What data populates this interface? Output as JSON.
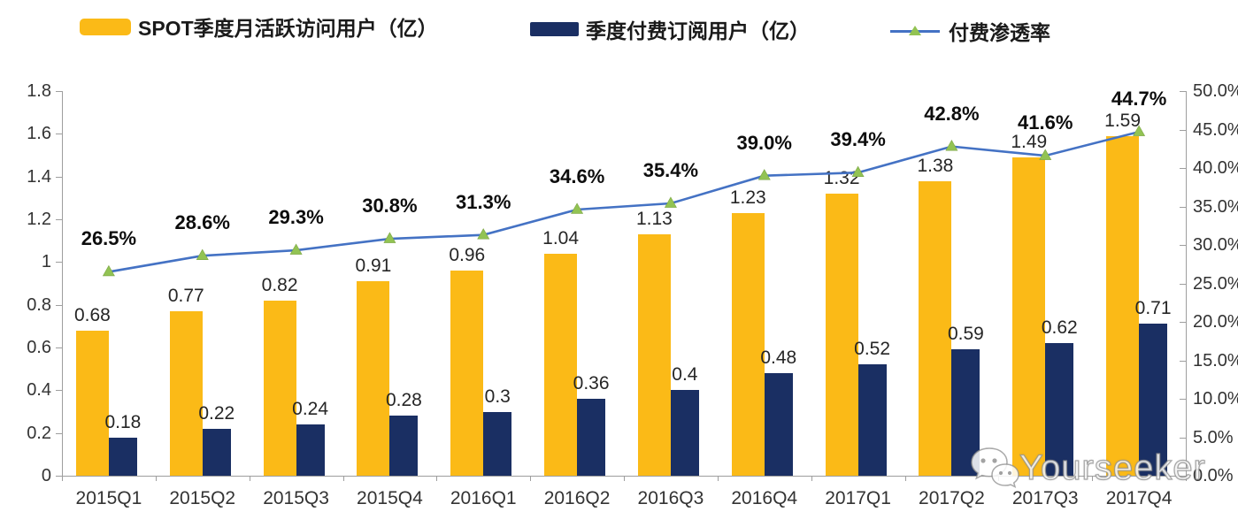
{
  "colors": {
    "mau_bar": "#FBBA17",
    "sub_bar": "#1A2F63",
    "line": "#4472C4",
    "marker": "#92C353",
    "axis": "#9e9e9e"
  },
  "watermark": {
    "text": "Yourseeker",
    "icon": "wechat-logo"
  },
  "chart_data": {
    "type": "bar+line",
    "legend_position": "top",
    "grid": false,
    "categories": [
      "2015Q1",
      "2015Q2",
      "2015Q3",
      "2015Q4",
      "2016Q1",
      "2016Q2",
      "2016Q3",
      "2016Q4",
      "2017Q1",
      "2017Q2",
      "2017Q3",
      "2017Q4"
    ],
    "series": [
      {
        "name": "SPOT季度月活跃访问用户（亿）",
        "type": "bar",
        "axis": "left",
        "color_key": "mau_bar",
        "values": [
          0.68,
          0.77,
          0.82,
          0.91,
          0.96,
          1.04,
          1.13,
          1.23,
          1.32,
          1.38,
          1.49,
          1.59
        ],
        "labels": [
          "0.68",
          "0.77",
          "0.82",
          "0.91",
          "0.96",
          "1.04",
          "1.13",
          "1.23",
          "1.32",
          "1.38",
          "1.49",
          "1.59"
        ]
      },
      {
        "name": "季度付费订阅用户（亿）",
        "type": "bar",
        "axis": "left",
        "color_key": "sub_bar",
        "values": [
          0.18,
          0.22,
          0.24,
          0.28,
          0.3,
          0.36,
          0.4,
          0.48,
          0.52,
          0.59,
          0.62,
          0.71
        ],
        "labels": [
          "0.18",
          "0.22",
          "0.24",
          "0.28",
          "0.3",
          "0.36",
          "0.4",
          "0.48",
          "0.52",
          "0.59",
          "0.62",
          "0.71"
        ]
      },
      {
        "name": "付费渗透率",
        "type": "line",
        "axis": "right",
        "color_key": "line",
        "marker": "triangle",
        "marker_color_key": "marker",
        "values": [
          26.5,
          28.6,
          29.3,
          30.8,
          31.3,
          34.6,
          35.4,
          39.0,
          39.4,
          42.8,
          41.6,
          44.7
        ],
        "labels": [
          "26.5%",
          "28.6%",
          "29.3%",
          "30.8%",
          "31.3%",
          "34.6%",
          "35.4%",
          "39.0%",
          "39.4%",
          "42.8%",
          "41.6%",
          "44.7%"
        ]
      }
    ],
    "left_axis": {
      "min": 0,
      "max": 1.8,
      "ticks": [
        "0",
        "0.2",
        "0.4",
        "0.6",
        "0.8",
        "1",
        "1.2",
        "1.4",
        "1.6",
        "1.8"
      ]
    },
    "right_axis": {
      "min": 0,
      "max": 50,
      "ticks": [
        "0.0%",
        "5.0%",
        "10.0%",
        "15.0%",
        "20.0%",
        "25.0%",
        "30.0%",
        "35.0%",
        "40.0%",
        "45.0%",
        "50.0%"
      ]
    }
  }
}
